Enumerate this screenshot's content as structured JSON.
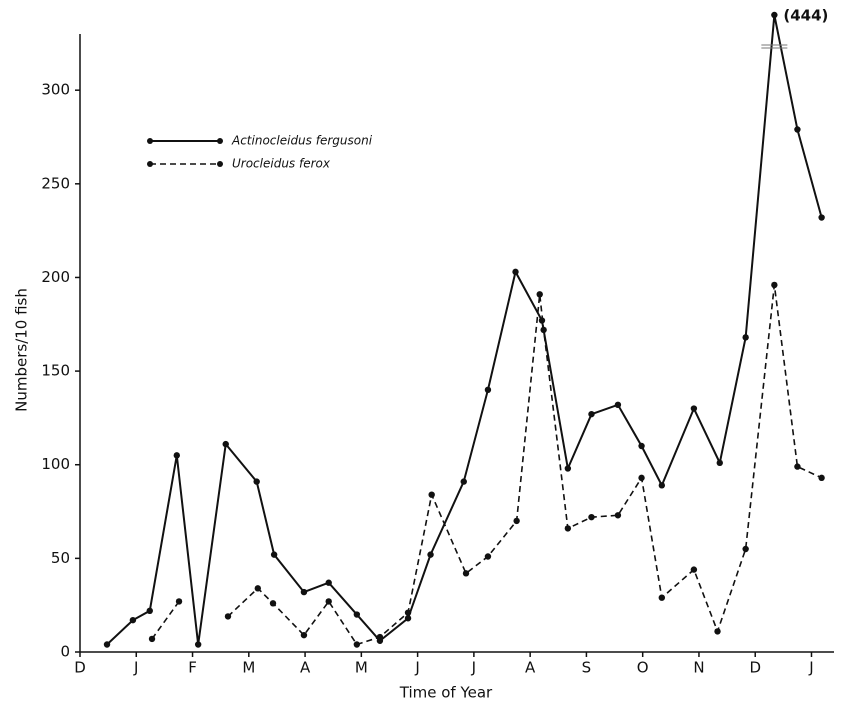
{
  "chart_data": {
    "type": "line",
    "y_label": "Numbers/10 fish",
    "x_label": "Time of Year",
    "xlim": [
      0,
      13.4
    ],
    "ylim": [
      0,
      330
    ],
    "xticks": [
      {
        "value": 0,
        "label": "D"
      },
      {
        "value": 1,
        "label": "J"
      },
      {
        "value": 2,
        "label": "F"
      },
      {
        "value": 3,
        "label": "M"
      },
      {
        "value": 4,
        "label": "A"
      },
      {
        "value": 5,
        "label": "M"
      },
      {
        "value": 6,
        "label": "J"
      },
      {
        "value": 7,
        "label": "J"
      },
      {
        "value": 8,
        "label": "A"
      },
      {
        "value": 9,
        "label": "S"
      },
      {
        "value": 10,
        "label": "O"
      },
      {
        "value": 11,
        "label": "N"
      },
      {
        "value": 12,
        "label": "D"
      },
      {
        "value": 13,
        "label": "J"
      }
    ],
    "yticks": [
      0,
      50,
      100,
      150,
      200,
      250,
      300
    ],
    "legend": "upper left",
    "series": [
      {
        "name": "Actinocleidus fergusoni",
        "color": "#111111",
        "dash": false,
        "x": [
          0.48,
          0.94,
          1.24,
          1.72,
          2.1,
          2.59,
          3.14,
          3.45,
          3.98,
          4.42,
          4.92,
          5.33,
          5.83,
          6.23,
          6.82,
          7.25,
          7.74,
          8.21,
          8.67,
          9.09,
          9.56,
          9.98,
          10.34,
          10.91,
          11.37,
          11.83,
          12.34,
          12.75,
          13.18
        ],
        "values": [
          4,
          17,
          22,
          105,
          4,
          111,
          91,
          52,
          32,
          37,
          20,
          6,
          18,
          52,
          91,
          140,
          203,
          177,
          98,
          127,
          132,
          110,
          89,
          130,
          101,
          168,
          444,
          279,
          232
        ],
        "value_labels": [
          null,
          null,
          null,
          null,
          null,
          null,
          null,
          null,
          null,
          null,
          null,
          null,
          null,
          null,
          null,
          null,
          null,
          null,
          null,
          null,
          null,
          null,
          null,
          null,
          null,
          null,
          "(444)",
          null,
          null
        ]
      },
      {
        "name": "Urocleidus ferox",
        "color": "#111111",
        "dash": true,
        "x": [
          1.28,
          1.76,
          null,
          2.63,
          3.16,
          3.43,
          3.98,
          4.42,
          4.92,
          5.33,
          5.83,
          6.25,
          6.86,
          7.25,
          7.76,
          8.17,
          8.24,
          8.67,
          9.09,
          9.56,
          9.98,
          10.34,
          10.91,
          11.33,
          11.83,
          12.34,
          12.75,
          13.18
        ],
        "values": [
          7,
          27,
          null,
          19,
          34,
          26,
          9,
          27,
          4,
          8,
          21,
          84,
          42,
          51,
          70,
          191,
          172,
          66,
          72,
          73,
          93,
          29,
          44,
          11,
          55,
          196,
          99,
          93
        ]
      }
    ]
  }
}
